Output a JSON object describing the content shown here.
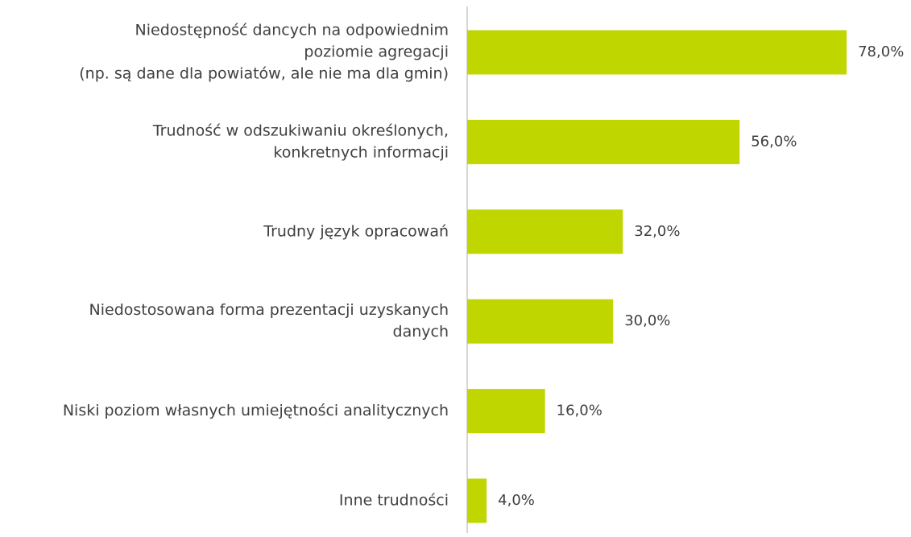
{
  "chart_data": {
    "type": "barh",
    "categories": [
      [
        "Niedostępność dancych na odpowiednim",
        "poziomie agregacji",
        "(np. są dane dla powiatów, ale nie ma dla gmin)"
      ],
      [
        "Trudność w odszukiwaniu określonych,",
        "konkretnych informacji"
      ],
      [
        "Trudny język opracowań"
      ],
      [
        "Niedostosowana forma prezentacji uzyskanych",
        "danych"
      ],
      [
        "Niski poziom własnych umiejętności analitycznych"
      ],
      [
        "Inne trudności"
      ]
    ],
    "values": [
      78,
      56,
      32,
      30,
      16,
      4
    ],
    "value_labels": [
      "78,0%",
      "56,0%",
      "32,0%",
      "30,0%",
      "16,0%",
      "4,0%"
    ],
    "color": "#bfd600"
  }
}
